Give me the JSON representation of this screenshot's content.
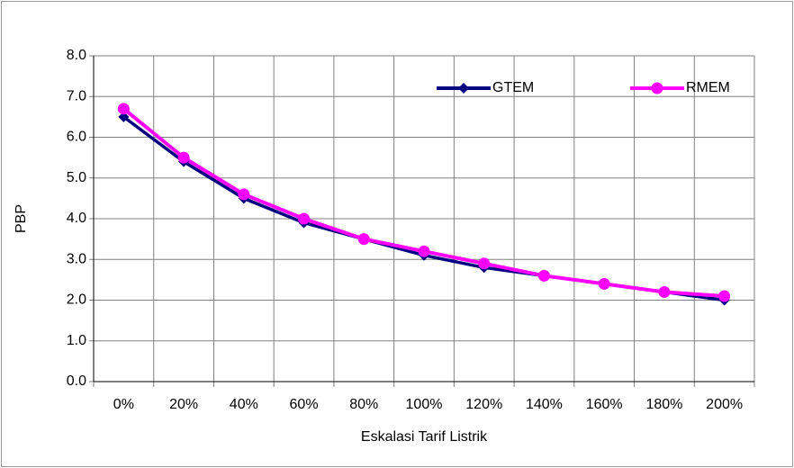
{
  "chart_data": {
    "type": "line",
    "x_label": "Eskalasi Tarif Listrik",
    "y_label": "PBP",
    "categories": [
      "0%",
      "20%",
      "40%",
      "60%",
      "80%",
      "100%",
      "120%",
      "140%",
      "160%",
      "180%",
      "200%"
    ],
    "series": [
      {
        "name": "GTEM",
        "color": "#000080",
        "marker": "diamond",
        "values": [
          6.5,
          5.4,
          4.5,
          3.9,
          3.5,
          3.1,
          2.8,
          2.6,
          2.4,
          2.2,
          2.0
        ]
      },
      {
        "name": "RMEM",
        "color": "#ff00ff",
        "marker": "circle",
        "values": [
          6.7,
          5.5,
          4.6,
          4.0,
          3.5,
          3.2,
          2.9,
          2.6,
          2.4,
          2.2,
          2.1
        ]
      }
    ],
    "ylim": [
      0,
      8
    ],
    "yticks": [
      {
        "value": 0,
        "label": "0.0"
      },
      {
        "value": 1,
        "label": "1.0"
      },
      {
        "value": 2,
        "label": "2.0"
      },
      {
        "value": 3,
        "label": "3.0"
      },
      {
        "value": 4,
        "label": "4.0"
      },
      {
        "value": 5,
        "label": "5.0"
      },
      {
        "value": 6,
        "label": "6.0"
      },
      {
        "value": 7,
        "label": "7.0"
      },
      {
        "value": 8,
        "label": "8.0"
      }
    ],
    "grid": true,
    "legend": "top-right"
  }
}
